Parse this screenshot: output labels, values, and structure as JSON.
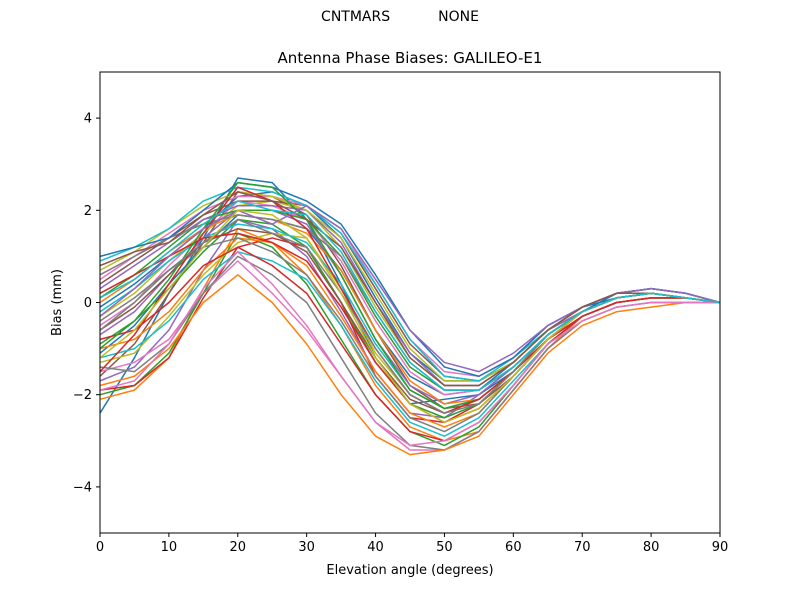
{
  "header": {
    "station": "CNTMARS",
    "antenna": "NONE"
  },
  "chart_data": {
    "type": "line",
    "title": "Antenna Phase Biases: GALILEO-E1",
    "xlabel": "Elevation angle (degrees)",
    "ylabel": "Bias (mm)",
    "xlim": [
      0,
      90
    ],
    "ylim": [
      -5,
      5
    ],
    "xticks": [
      0,
      10,
      20,
      30,
      40,
      50,
      60,
      70,
      80,
      90
    ],
    "yticks": [
      -4,
      -2,
      0,
      2,
      4
    ],
    "grid": false,
    "legend": "none",
    "x": [
      0,
      5,
      10,
      15,
      20,
      25,
      30,
      35,
      40,
      45,
      50,
      55,
      60,
      65,
      70,
      75,
      80,
      85,
      90
    ],
    "colors": [
      "#1f77b4",
      "#ff7f0e",
      "#2ca02c",
      "#d62728",
      "#9467bd",
      "#8c564b",
      "#e377c2",
      "#7f7f7f",
      "#bcbd22",
      "#17becf"
    ],
    "series": [
      {
        "values": [
          -2.4,
          -1.2,
          0.2,
          1.4,
          2.7,
          2.6,
          1.8,
          0.4,
          -1.2,
          -2.2,
          -2.1,
          -2.0,
          -1.5,
          -0.8,
          -0.2,
          0.2,
          0.3,
          0.2,
          0.0
        ]
      },
      {
        "values": [
          -2.1,
          -1.9,
          -1.2,
          0.3,
          1.6,
          1.3,
          0.6,
          -0.5,
          -1.8,
          -2.7,
          -3.0,
          -2.8,
          -1.9,
          -1.0,
          -0.3,
          0.0,
          0.1,
          0.1,
          0.0
        ]
      },
      {
        "values": [
          -2.0,
          -1.8,
          -1.1,
          0.2,
          1.5,
          1.2,
          0.4,
          -0.8,
          -2.0,
          -2.8,
          -3.1,
          -2.7,
          -1.8,
          -0.9,
          -0.3,
          0.0,
          0.1,
          0.1,
          0.0
        ]
      },
      {
        "values": [
          -1.9,
          -1.8,
          -1.2,
          0.1,
          1.2,
          1.4,
          1.2,
          0.0,
          -1.6,
          -2.5,
          -2.6,
          -2.2,
          -1.5,
          -0.7,
          -0.2,
          0.1,
          0.2,
          0.1,
          0.0
        ]
      },
      {
        "values": [
          -1.7,
          -1.4,
          -0.6,
          0.7,
          1.8,
          1.6,
          1.0,
          -0.2,
          -1.5,
          -2.4,
          -2.5,
          -2.0,
          -1.4,
          -0.7,
          -0.2,
          0.1,
          0.2,
          0.1,
          0.0
        ]
      },
      {
        "values": [
          -1.6,
          -0.9,
          0.2,
          1.3,
          2.4,
          2.3,
          1.9,
          0.8,
          -0.6,
          -1.8,
          -2.3,
          -2.2,
          -1.6,
          -0.8,
          -0.2,
          0.1,
          0.2,
          0.1,
          0.0
        ]
      },
      {
        "values": [
          -1.5,
          -1.3,
          -0.8,
          0.2,
          0.9,
          0.2,
          -0.6,
          -1.6,
          -2.6,
          -3.2,
          -3.2,
          -2.8,
          -1.9,
          -1.0,
          -0.4,
          -0.1,
          0.0,
          0.0,
          0.0
        ]
      },
      {
        "values": [
          -1.4,
          -1.5,
          -0.9,
          0.2,
          1.0,
          0.6,
          0.0,
          -1.2,
          -2.4,
          -3.1,
          -3.2,
          -2.8,
          -1.9,
          -1.0,
          -0.4,
          -0.1,
          0.0,
          0.0,
          0.0
        ]
      },
      {
        "values": [
          -1.3,
          -1.1,
          -0.3,
          0.6,
          1.3,
          1.5,
          1.4,
          0.3,
          -1.1,
          -2.0,
          -2.4,
          -2.1,
          -1.5,
          -0.7,
          -0.2,
          0.1,
          0.2,
          0.1,
          0.0
        ]
      },
      {
        "values": [
          -1.2,
          -1.0,
          -0.4,
          0.5,
          1.1,
          0.9,
          0.5,
          -0.5,
          -1.7,
          -2.6,
          -2.9,
          -2.5,
          -1.7,
          -0.9,
          -0.3,
          0.0,
          0.1,
          0.1,
          0.0
        ]
      },
      {
        "values": [
          -1.1,
          -0.5,
          0.4,
          1.2,
          1.9,
          1.8,
          1.6,
          0.7,
          -0.6,
          -1.6,
          -2.0,
          -1.9,
          -1.3,
          -0.6,
          -0.1,
          0.2,
          0.2,
          0.1,
          0.0
        ]
      },
      {
        "values": [
          -1.0,
          -0.8,
          -0.2,
          0.7,
          1.4,
          1.3,
          0.8,
          -0.3,
          -1.5,
          -2.4,
          -2.7,
          -2.4,
          -1.6,
          -0.8,
          -0.3,
          0.0,
          0.1,
          0.1,
          0.0
        ]
      },
      {
        "values": [
          -0.9,
          -0.4,
          0.3,
          1.1,
          1.8,
          1.7,
          1.2,
          0.0,
          -1.3,
          -2.2,
          -2.5,
          -2.2,
          -1.5,
          -0.7,
          -0.2,
          0.1,
          0.2,
          0.1,
          0.0
        ]
      },
      {
        "values": [
          -0.8,
          -0.6,
          0.0,
          0.8,
          1.2,
          0.8,
          0.2,
          -0.9,
          -2.0,
          -2.8,
          -3.0,
          -2.6,
          -1.8,
          -0.9,
          -0.3,
          0.0,
          0.1,
          0.1,
          0.0
        ]
      },
      {
        "values": [
          -0.7,
          -0.2,
          0.6,
          1.4,
          2.0,
          2.0,
          1.7,
          0.6,
          -0.8,
          -1.8,
          -2.2,
          -2.0,
          -1.4,
          -0.7,
          -0.2,
          0.1,
          0.2,
          0.1,
          0.0
        ]
      },
      {
        "values": [
          -0.6,
          -0.1,
          0.6,
          1.3,
          1.6,
          1.5,
          1.1,
          0.0,
          -1.2,
          -2.1,
          -2.4,
          -2.1,
          -1.5,
          -0.7,
          -0.2,
          0.1,
          0.2,
          0.1,
          0.0
        ]
      },
      {
        "values": [
          -0.5,
          0.0,
          0.8,
          1.5,
          2.2,
          2.1,
          1.8,
          0.9,
          -0.4,
          -1.5,
          -2.0,
          -1.9,
          -1.4,
          -0.7,
          -0.2,
          0.1,
          0.2,
          0.1,
          0.0
        ]
      },
      {
        "values": [
          -0.4,
          0.1,
          0.7,
          1.2,
          1.4,
          1.1,
          0.6,
          -0.4,
          -1.6,
          -2.5,
          -2.8,
          -2.4,
          -1.6,
          -0.8,
          -0.3,
          0.0,
          0.1,
          0.1,
          0.0
        ]
      },
      {
        "values": [
          -0.3,
          0.2,
          0.9,
          1.5,
          2.1,
          2.2,
          2.0,
          1.2,
          -0.1,
          -1.2,
          -1.8,
          -1.8,
          -1.3,
          -0.6,
          -0.2,
          0.1,
          0.2,
          0.1,
          0.0
        ]
      },
      {
        "values": [
          -0.2,
          0.3,
          0.9,
          1.4,
          1.7,
          1.6,
          1.3,
          0.4,
          -0.9,
          -1.9,
          -2.3,
          -2.1,
          -1.5,
          -0.7,
          -0.2,
          0.1,
          0.2,
          0.1,
          0.0
        ]
      },
      {
        "values": [
          -0.1,
          0.4,
          1.0,
          1.6,
          2.3,
          2.4,
          2.1,
          1.4,
          0.1,
          -1.1,
          -1.7,
          -1.7,
          -1.3,
          -0.6,
          -0.1,
          0.1,
          0.2,
          0.1,
          0.0
        ]
      },
      {
        "values": [
          0.0,
          0.5,
          1.1,
          1.6,
          1.9,
          1.8,
          1.5,
          0.7,
          -0.6,
          -1.7,
          -2.2,
          -2.1,
          -1.5,
          -0.7,
          -0.2,
          0.1,
          0.2,
          0.1,
          0.0
        ]
      },
      {
        "values": [
          0.1,
          0.6,
          1.2,
          1.8,
          2.0,
          2.0,
          1.8,
          1.0,
          -0.3,
          -1.4,
          -1.9,
          -1.9,
          -1.4,
          -0.7,
          -0.2,
          0.1,
          0.2,
          0.1,
          0.0
        ]
      },
      {
        "values": [
          0.2,
          0.6,
          1.0,
          1.4,
          1.5,
          1.3,
          0.9,
          -0.1,
          -1.3,
          -2.2,
          -2.6,
          -2.3,
          -1.6,
          -0.8,
          -0.3,
          0.0,
          0.1,
          0.1,
          0.0
        ]
      },
      {
        "values": [
          0.3,
          0.8,
          1.3,
          1.8,
          2.1,
          2.1,
          2.0,
          1.3,
          0.0,
          -1.1,
          -1.8,
          -1.8,
          -1.3,
          -0.6,
          -0.2,
          0.1,
          0.2,
          0.1,
          0.0
        ]
      },
      {
        "values": [
          0.4,
          0.9,
          1.4,
          1.9,
          2.2,
          2.2,
          2.1,
          1.5,
          0.3,
          -0.9,
          -1.6,
          -1.7,
          -1.3,
          -0.6,
          -0.1,
          0.2,
          0.3,
          0.2,
          0.0
        ]
      },
      {
        "values": [
          0.5,
          1.0,
          1.5,
          2.0,
          2.3,
          2.3,
          2.1,
          1.6,
          0.4,
          -0.8,
          -1.5,
          -1.6,
          -1.2,
          -0.5,
          -0.1,
          0.2,
          0.3,
          0.2,
          0.0
        ]
      },
      {
        "values": [
          0.6,
          1.0,
          1.4,
          1.7,
          1.9,
          1.8,
          1.6,
          1.0,
          -0.2,
          -1.3,
          -1.9,
          -1.9,
          -1.4,
          -0.7,
          -0.2,
          0.1,
          0.2,
          0.1,
          0.0
        ]
      },
      {
        "values": [
          0.7,
          1.1,
          1.6,
          2.1,
          2.4,
          2.3,
          2.0,
          1.4,
          0.2,
          -1.0,
          -1.7,
          -1.7,
          -1.3,
          -0.6,
          -0.1,
          0.2,
          0.3,
          0.2,
          0.0
        ]
      },
      {
        "values": [
          0.9,
          1.2,
          1.6,
          2.2,
          2.5,
          2.4,
          2.1,
          1.5,
          0.4,
          -0.8,
          -1.6,
          -1.7,
          -1.2,
          -0.6,
          -0.1,
          0.2,
          0.3,
          0.2,
          0.0
        ]
      },
      {
        "values": [
          1.0,
          1.2,
          1.4,
          2.0,
          2.6,
          2.5,
          2.2,
          1.7,
          0.6,
          -0.6,
          -1.4,
          -1.6,
          -1.2,
          -0.5,
          -0.1,
          0.2,
          0.3,
          0.2,
          0.0
        ]
      },
      {
        "values": [
          -1.8,
          -1.6,
          -1.0,
          0.0,
          0.6,
          0.0,
          -0.9,
          -2.0,
          -2.9,
          -3.3,
          -3.2,
          -2.9,
          -2.0,
          -1.1,
          -0.5,
          -0.2,
          -0.1,
          0.0,
          0.0
        ]
      },
      {
        "values": [
          -1.0,
          -0.4,
          0.5,
          1.6,
          2.6,
          2.5,
          1.8,
          0.6,
          -0.8,
          -1.9,
          -2.3,
          -2.1,
          -1.5,
          -0.7,
          -0.2,
          0.1,
          0.2,
          0.1,
          0.0
        ]
      },
      {
        "values": [
          -1.5,
          -0.7,
          0.4,
          1.5,
          2.5,
          2.2,
          1.6,
          0.3,
          -1.0,
          -2.0,
          -2.4,
          -2.1,
          -1.5,
          -0.8,
          -0.2,
          0.1,
          0.2,
          0.1,
          0.0
        ]
      },
      {
        "values": [
          -0.3,
          0.3,
          1.0,
          1.6,
          2.0,
          1.7,
          2.1,
          1.6,
          0.5,
          -0.6,
          -1.3,
          -1.5,
          -1.1,
          -0.5,
          -0.1,
          0.2,
          0.3,
          0.2,
          0.0
        ]
      },
      {
        "values": [
          0.8,
          1.1,
          1.3,
          1.9,
          2.4,
          2.2,
          1.8,
          1.2,
          0.0,
          -1.2,
          -1.8,
          -1.8,
          -1.3,
          -0.6,
          -0.1,
          0.2,
          0.2,
          0.1,
          0.0
        ]
      },
      {
        "values": [
          -1.9,
          -1.7,
          -0.9,
          0.3,
          1.1,
          0.4,
          -0.5,
          -1.6,
          -2.6,
          -3.1,
          -3.0,
          -2.6,
          -1.8,
          -0.9,
          -0.4,
          -0.1,
          0.0,
          0.0,
          0.0
        ]
      },
      {
        "values": [
          -0.6,
          0.0,
          0.7,
          1.3,
          1.8,
          1.5,
          1.2,
          0.2,
          -1.0,
          -2.0,
          -2.4,
          -2.2,
          -1.5,
          -0.7,
          -0.2,
          0.1,
          0.2,
          0.1,
          0.0
        ]
      },
      {
        "values": [
          -1.2,
          -0.6,
          0.3,
          1.2,
          2.0,
          1.9,
          1.4,
          0.2,
          -1.2,
          -2.2,
          -2.6,
          -2.3,
          -1.6,
          -0.8,
          -0.2,
          0.1,
          0.2,
          0.1,
          0.0
        ]
      },
      {
        "values": [
          0.1,
          0.5,
          1.1,
          1.7,
          2.2,
          2.0,
          1.9,
          1.1,
          -0.2,
          -1.3,
          -1.9,
          -1.9,
          -1.4,
          -0.7,
          -0.2,
          0.1,
          0.2,
          0.1,
          0.0
        ]
      }
    ]
  }
}
